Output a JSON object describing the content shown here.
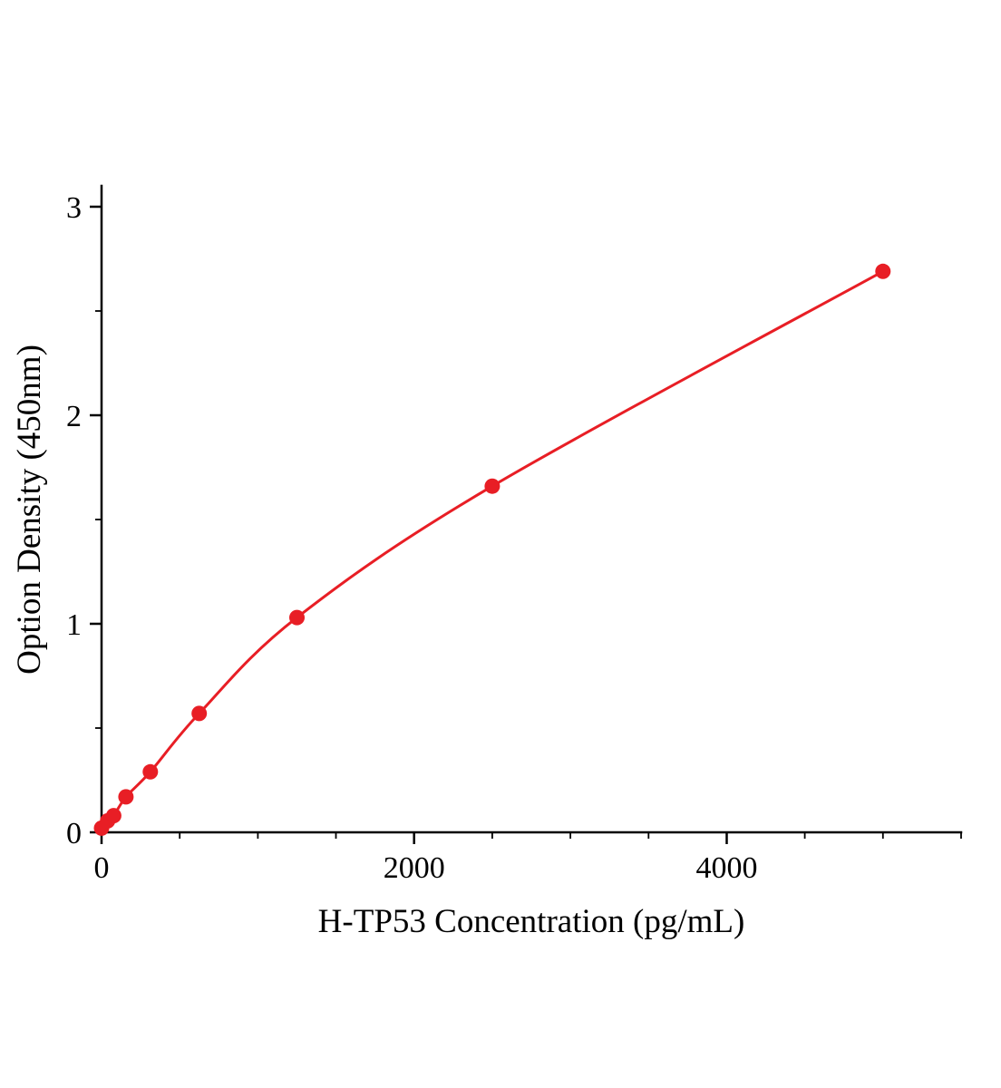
{
  "chart_data": {
    "type": "scatter",
    "title": "",
    "xlabel": "H-TP53 Concentration (pg/mL)",
    "ylabel": "Option Density (450nm)",
    "xlim": [
      0,
      5500
    ],
    "ylim": [
      0,
      3.1
    ],
    "x_major_ticks": [
      0,
      2000,
      4000
    ],
    "x_minor_step": 500,
    "y_major_ticks": [
      0,
      1,
      2,
      3
    ],
    "y_minor_step": 0.5,
    "grid": false,
    "legend": "none",
    "line_color": "#e81e25",
    "marker_color": "#e81e25",
    "marker_radius": 8.5,
    "points": [
      {
        "x": 0,
        "y": 0.02
      },
      {
        "x": 39,
        "y": 0.055
      },
      {
        "x": 78,
        "y": 0.08
      },
      {
        "x": 156,
        "y": 0.17
      },
      {
        "x": 312,
        "y": 0.29
      },
      {
        "x": 625,
        "y": 0.57
      },
      {
        "x": 1250,
        "y": 1.03
      },
      {
        "x": 2500,
        "y": 1.66
      },
      {
        "x": 5000,
        "y": 2.69
      }
    ]
  }
}
